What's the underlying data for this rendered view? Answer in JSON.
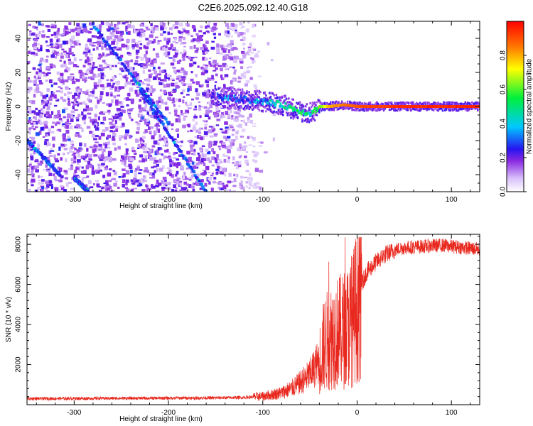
{
  "figure_title": "C2E6.2025.092.12.40.G18",
  "chart_data": [
    {
      "type": "heatmap",
      "description": "Radio-holography spectrogram of signal frequency vs. straight-line height",
      "xlabel": "Height of straight line (km)",
      "ylabel": "Frequency (Hz)",
      "xlim": [
        -350,
        130
      ],
      "ylim": [
        -50,
        50
      ],
      "xticks": [
        -300,
        -200,
        -100,
        0,
        100
      ],
      "yticks": [
        -40,
        -20,
        0,
        20,
        40
      ],
      "colorbar": {
        "label": "Normalized spectral amplitude",
        "range": [
          0.0,
          1.0
        ],
        "ticks": [
          "0.0",
          "0.2",
          "0.4",
          "0.6",
          "0.8"
        ],
        "colormap": [
          "#ffffff",
          "#8a2be2",
          "#0000ff",
          "#00ffff",
          "#00ff00",
          "#ffff00",
          "#ff0000"
        ]
      },
      "features": {
        "main_ridge": [
          {
            "x": -150,
            "y": 6,
            "amp": 0.25
          },
          {
            "x": -140,
            "y": 5,
            "amp": 0.3
          },
          {
            "x": -120,
            "y": 4,
            "amp": 0.28
          },
          {
            "x": -100,
            "y": 3,
            "amp": 0.35
          },
          {
            "x": -90,
            "y": 2,
            "amp": 0.4
          },
          {
            "x": -80,
            "y": 1,
            "amp": 0.45
          },
          {
            "x": -70,
            "y": -1,
            "amp": 0.45
          },
          {
            "x": -60,
            "y": -3,
            "amp": 0.5
          },
          {
            "x": -50,
            "y": -4,
            "amp": 0.45
          },
          {
            "x": -40,
            "y": 0,
            "amp": 0.6
          },
          {
            "x": -30,
            "y": 0,
            "amp": 0.8
          },
          {
            "x": -15,
            "y": 1,
            "amp": 0.85
          },
          {
            "x": 0,
            "y": 0,
            "amp": 0.9
          },
          {
            "x": 50,
            "y": 0,
            "amp": 0.95
          },
          {
            "x": 130,
            "y": 0,
            "amp": 0.95
          }
        ],
        "diagonal_tracks": [
          {
            "start": {
              "x": -280,
              "y": 48
            },
            "end": {
              "x": -200,
              "y": -10
            }
          },
          {
            "start": {
              "x": -230,
              "y": 10
            },
            "end": {
              "x": -160,
              "y": -50
            }
          },
          {
            "start": {
              "x": -350,
              "y": -20
            },
            "end": {
              "x": -315,
              "y": -40
            }
          },
          {
            "start": {
              "x": -300,
              "y": -42
            },
            "end": {
              "x": -285,
              "y": -50
            }
          }
        ]
      }
    },
    {
      "type": "line",
      "xlabel": "Height of straight line (km)",
      "ylabel": "SNR (10 * v/v)",
      "xlim": [
        -350,
        130
      ],
      "ylim": [
        0,
        8500
      ],
      "xticks": [
        -300,
        -200,
        -100,
        0,
        100
      ],
      "yticks": [
        2000,
        4000,
        6000,
        8000
      ],
      "series": [
        {
          "color": "#e8281e",
          "envelope": [
            {
              "x": -350,
              "y": 300
            },
            {
              "x": -300,
              "y": 310
            },
            {
              "x": -250,
              "y": 320
            },
            {
              "x": -200,
              "y": 330
            },
            {
              "x": -150,
              "y": 340
            },
            {
              "x": -120,
              "y": 360
            },
            {
              "x": -100,
              "y": 420
            },
            {
              "x": -90,
              "y": 500
            },
            {
              "x": -80,
              "y": 600
            },
            {
              "x": -70,
              "y": 800
            },
            {
              "x": -60,
              "y": 1100
            },
            {
              "x": -50,
              "y": 1500
            },
            {
              "x": -40,
              "y": 2200
            },
            {
              "x": -35,
              "y": 3000
            },
            {
              "x": -30,
              "y": 3300
            },
            {
              "x": -25,
              "y": 3500
            },
            {
              "x": -20,
              "y": 3600
            },
            {
              "x": -15,
              "y": 3700
            },
            {
              "x": -10,
              "y": 3900
            },
            {
              "x": -5,
              "y": 4200
            },
            {
              "x": 0,
              "y": 5000
            },
            {
              "x": 5,
              "y": 6000
            },
            {
              "x": 10,
              "y": 6600
            },
            {
              "x": 20,
              "y": 7100
            },
            {
              "x": 30,
              "y": 7500
            },
            {
              "x": 45,
              "y": 7800
            },
            {
              "x": 70,
              "y": 7900
            },
            {
              "x": 90,
              "y": 7950
            },
            {
              "x": 110,
              "y": 7850
            },
            {
              "x": 130,
              "y": 7750
            }
          ]
        }
      ]
    }
  ]
}
